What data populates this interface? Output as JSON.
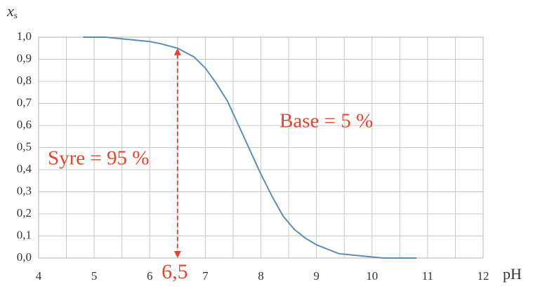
{
  "chart_data": {
    "type": "line",
    "y_label": {
      "main": "x",
      "sub": "s"
    },
    "x_label": "pH",
    "x": [
      4.8,
      5.2,
      5.6,
      6.0,
      6.2,
      6.5,
      6.8,
      7.0,
      7.2,
      7.4,
      7.6,
      7.8,
      8.0,
      8.2,
      8.4,
      8.6,
      8.8,
      9.0,
      9.4,
      9.8,
      10.2,
      10.8
    ],
    "values": [
      1.0,
      1.0,
      0.99,
      0.98,
      0.97,
      0.95,
      0.91,
      0.86,
      0.79,
      0.71,
      0.6,
      0.49,
      0.38,
      0.28,
      0.19,
      0.13,
      0.09,
      0.06,
      0.02,
      0.01,
      0.0,
      0.0
    ],
    "color": "#5b8db8",
    "xlim": [
      4,
      12
    ],
    "ylim": [
      0,
      1
    ],
    "xticks": [
      4,
      5,
      6,
      7,
      8,
      9,
      10,
      11,
      12
    ],
    "yticks": [
      {
        "value": 0,
        "label": "0,0"
      },
      {
        "value": 0.1,
        "label": "0,1"
      },
      {
        "value": 0.2,
        "label": "0,2"
      },
      {
        "value": 0.3,
        "label": "0,3"
      },
      {
        "value": 0.4,
        "label": "0,4"
      },
      {
        "value": 0.5,
        "label": "0,5"
      },
      {
        "value": 0.6,
        "label": "0,6"
      },
      {
        "value": 0.7,
        "label": "0,7"
      },
      {
        "value": 0.8,
        "label": "0,8"
      },
      {
        "value": 0.9,
        "label": "0,9"
      },
      {
        "value": 1,
        "label": "1,0"
      }
    ],
    "grid": true,
    "annotations": [
      "Base = 5 %",
      "Syre = 95 %"
    ],
    "arrow": {
      "x": 6.5,
      "y": 0.95,
      "label": "6,5",
      "color": "#e8432d"
    }
  }
}
